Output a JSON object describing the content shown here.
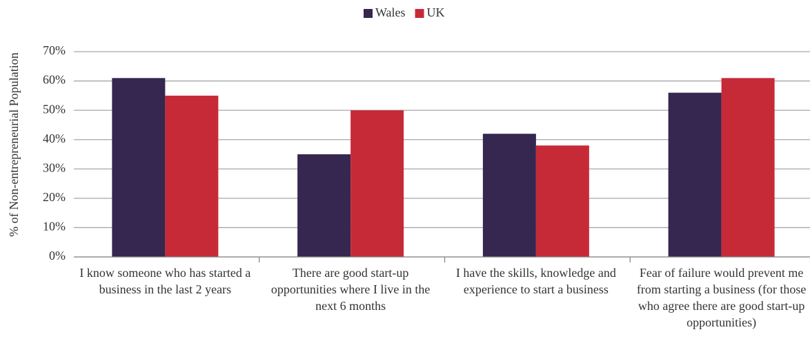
{
  "chart_data": {
    "type": "bar",
    "y_label": "% of Non-entrepreneurial Population",
    "categories": [
      "I know someone who has started a business in the last 2 years",
      "There are good start-up opportunities where I live in the next 6 months",
      "I have the skills, knowledge and experience to start a business",
      "Fear of failure would prevent me from starting a business (for those who agree there are good start-up opportunities)"
    ],
    "series": [
      {
        "name": "Wales",
        "color": "#352750",
        "values": [
          61,
          35,
          42,
          56
        ]
      },
      {
        "name": "UK",
        "color": "#c72a37",
        "values": [
          55,
          50,
          38,
          61
        ]
      }
    ],
    "ylim": [
      0,
      70
    ],
    "yticks": [
      {
        "value": 0,
        "label": "0%"
      },
      {
        "value": 10,
        "label": "10%"
      },
      {
        "value": 20,
        "label": "20%"
      },
      {
        "value": 30,
        "label": "30%"
      },
      {
        "value": 40,
        "label": "40%"
      },
      {
        "value": 50,
        "label": "50%"
      },
      {
        "value": 60,
        "label": "60%"
      },
      {
        "value": 70,
        "label": "70%"
      }
    ],
    "grid": true,
    "legend": "top"
  }
}
